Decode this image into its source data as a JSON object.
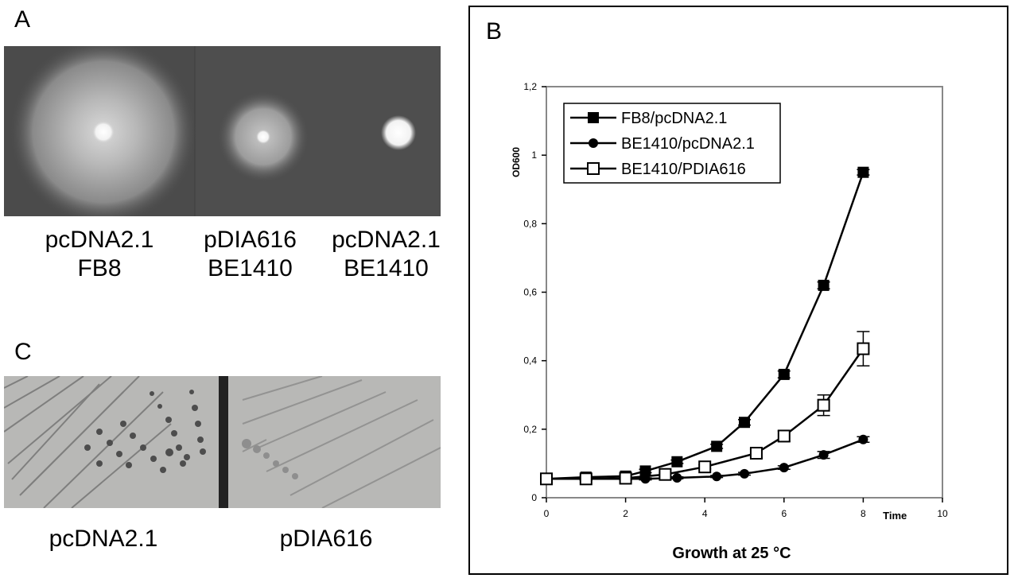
{
  "panelA": {
    "letter": "A",
    "labels": [
      {
        "line1": "pcDNA2.1",
        "line2": "FB8"
      },
      {
        "line1": "pDIA616",
        "line2": "BE1410"
      },
      {
        "line1": "pcDNA2.1",
        "line2": "BE1410"
      }
    ]
  },
  "panelC": {
    "letter": "C",
    "labels": [
      "pcDNA2.1",
      "pDIA616"
    ]
  },
  "panelB": {
    "letter": "B"
  },
  "chart_data": {
    "type": "line",
    "title": "",
    "xlabel": "Growth at 25 °C",
    "x_axis_end_label": "Time",
    "ylabel": "OD600",
    "xlim": [
      0,
      10
    ],
    "ylim": [
      0,
      1.2
    ],
    "x_ticks": [
      0,
      2,
      4,
      6,
      8,
      10
    ],
    "y_ticks": [
      0,
      0.2,
      0.4,
      0.6,
      0.8,
      1,
      1.2
    ],
    "y_tick_labels": [
      "0",
      "0,2",
      "0,4",
      "0,6",
      "0,8",
      "1",
      "1,2"
    ],
    "grid": false,
    "legend_position": "top-left",
    "series": [
      {
        "name": "FB8/pcDNA2.1",
        "marker": "filled-square",
        "points": [
          [
            0,
            0.055
          ],
          [
            1,
            0.06
          ],
          [
            2,
            0.063
          ],
          [
            2.5,
            0.078
          ],
          [
            3.3,
            0.105
          ],
          [
            4.3,
            0.15
          ],
          [
            5,
            0.22
          ],
          [
            6,
            0.36
          ],
          [
            7,
            0.62
          ],
          [
            8,
            0.95
          ]
        ],
        "errors": [
          0.004,
          0.004,
          0.004,
          0.005,
          0.005,
          0.006,
          0.008,
          0.01,
          0.01,
          0.008
        ]
      },
      {
        "name": "BE1410/pcDNA2.1",
        "marker": "filled-circle",
        "points": [
          [
            0,
            0.055
          ],
          [
            1,
            0.055
          ],
          [
            2,
            0.055
          ],
          [
            2.5,
            0.055
          ],
          [
            3.3,
            0.058
          ],
          [
            4.3,
            0.062
          ],
          [
            5,
            0.07
          ],
          [
            6,
            0.088
          ],
          [
            7,
            0.125
          ],
          [
            8,
            0.17
          ]
        ],
        "errors": [
          0.003,
          0.003,
          0.003,
          0.003,
          0.003,
          0.003,
          0.004,
          0.005,
          0.01,
          0.008
        ]
      },
      {
        "name": "BE1410/PDIA616",
        "marker": "open-square",
        "points": [
          [
            0,
            0.055
          ],
          [
            1,
            0.055
          ],
          [
            2,
            0.057
          ],
          [
            3,
            0.068
          ],
          [
            4,
            0.09
          ],
          [
            5.3,
            0.13
          ],
          [
            6,
            0.18
          ],
          [
            7,
            0.27
          ],
          [
            8,
            0.435
          ]
        ],
        "errors": [
          0.004,
          0.004,
          0.004,
          0.005,
          0.006,
          0.012,
          0.015,
          0.03,
          0.05
        ]
      }
    ]
  }
}
